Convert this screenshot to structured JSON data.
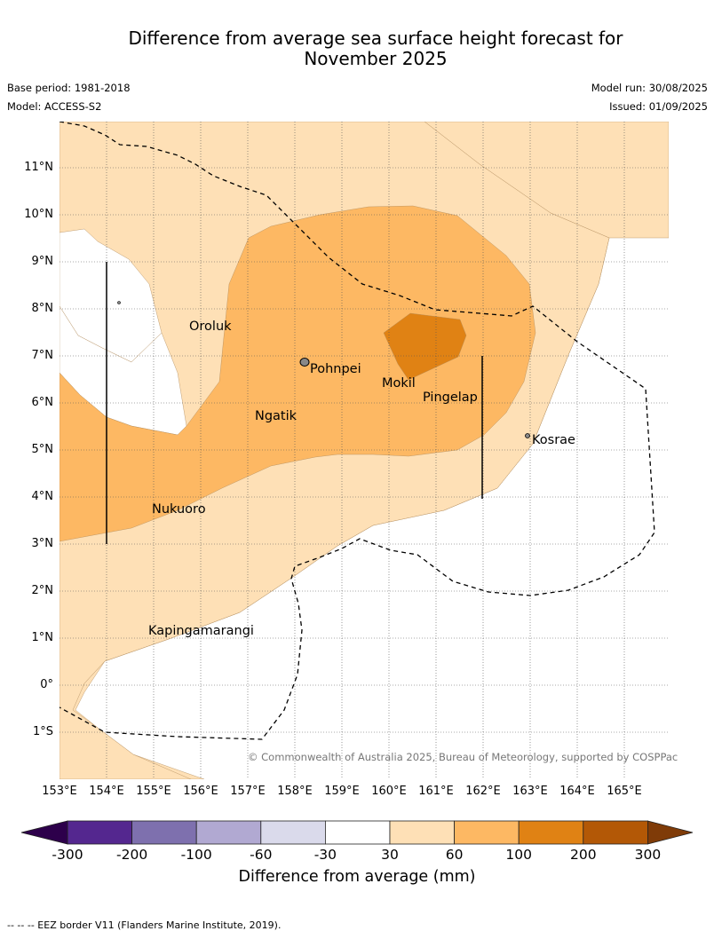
{
  "title_line1": "Difference from average sea surface height forecast for",
  "title_line2": "November 2025",
  "base_period": "Base period: 1981-2018",
  "model": "Model: ACCESS-S2",
  "model_run": "Model run: 30/08/2025",
  "issued": "Issued: 01/09/2025",
  "lat_labels": [
    "11°N",
    "10°N",
    "9°N",
    "8°N",
    "7°N",
    "6°N",
    "5°N",
    "4°N",
    "3°N",
    "2°N",
    "1°N",
    "0°",
    "1°S"
  ],
  "lon_labels": [
    "153°E",
    "154°E",
    "155°E",
    "156°E",
    "157°E",
    "158°E",
    "159°E",
    "160°E",
    "161°E",
    "162°E",
    "163°E",
    "164°E",
    "165°E"
  ],
  "places": {
    "oroluk": "Oroluk",
    "pohnpei": "Pohnpei",
    "mokil": "Mokil",
    "pingelap": "Pingelap",
    "ngatik": "Ngatik",
    "kosrae": "Kosrae",
    "nukuoro": "Nukuoro",
    "kapingamarangi": "Kapingamarangi"
  },
  "copyright": "© Commonwealth of Australia 2025, Bureau of Meteorology, supported by COSPPac",
  "colorbar": {
    "ticks": [
      "-300",
      "-200",
      "-100",
      "-60",
      "-30",
      "30",
      "60",
      "100",
      "200",
      "300"
    ],
    "colors": [
      "#54278f",
      "#7e70ae",
      "#b1a9d2",
      "#dadaeb",
      "#ffffff",
      "#fee0b6",
      "#fdb863",
      "#e08214",
      "#b35806"
    ],
    "under_color": "#2d004b",
    "over_color": "#7f3b08",
    "title": "Difference from average (mm)"
  },
  "footnote": "--  --  -- EEZ border V11 (Flanders Marine Institute, 2019)."
}
